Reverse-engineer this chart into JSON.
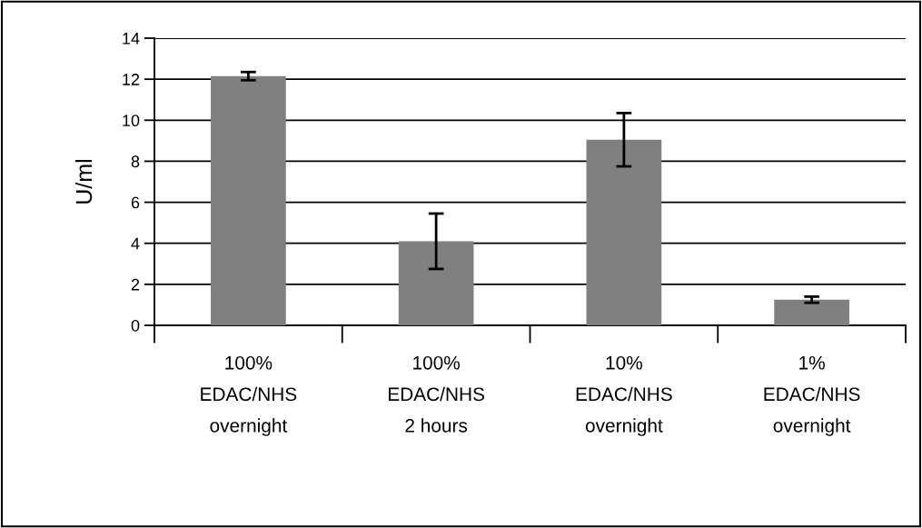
{
  "chart_data": {
    "type": "bar",
    "ylabel": "U/ml",
    "categories": [
      "100%\nEDAC/NHS\novernight",
      "100%\nEDAC/NHS\n2 hours",
      "10%\nEDAC/NHS\novernight",
      "1%\nEDAC/NHS\novernight"
    ],
    "values": [
      12.15,
      4.1,
      9.05,
      1.25
    ],
    "errors": [
      0.2,
      1.35,
      1.3,
      0.15
    ],
    "color": "#808080",
    "ylim": [
      0,
      14
    ],
    "yticks": [
      0,
      2,
      4,
      6,
      8,
      10,
      12,
      14
    ],
    "grid": "y"
  }
}
